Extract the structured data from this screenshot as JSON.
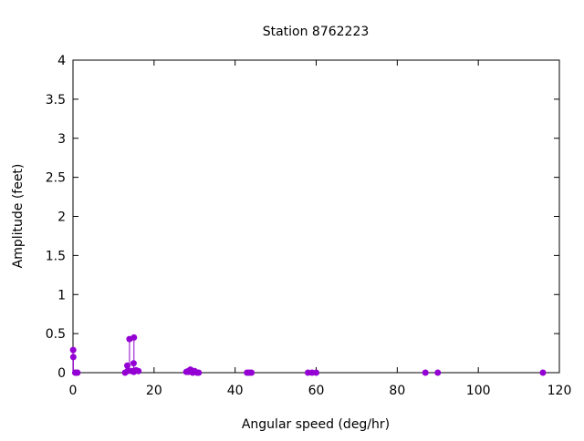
{
  "chart_data": {
    "type": "scatter",
    "style": "impulses with points",
    "title": "Station 8762223",
    "xlabel": "Angular speed (deg/hr)",
    "ylabel": "Amplitude (feet)",
    "xlim": [
      0,
      120
    ],
    "ylim": [
      0,
      4
    ],
    "xticks": [
      "0",
      "20",
      "40",
      "60",
      "80",
      "100",
      "120"
    ],
    "yticks": [
      "0",
      "0.5",
      "1",
      "1.5",
      "2",
      "2.5",
      "3",
      "3.5",
      "4"
    ],
    "xtick_values": [
      0,
      20,
      40,
      60,
      80,
      100,
      120
    ],
    "ytick_values": [
      0,
      0.5,
      1,
      1.5,
      2,
      2.5,
      3,
      3.5,
      4
    ],
    "grid": false,
    "color": "#9400d3",
    "points": [
      [
        0.041,
        0.29
      ],
      [
        0.082,
        0.2
      ],
      [
        0.544,
        0.0
      ],
      [
        1.015,
        0.0
      ],
      [
        1.098,
        0.0
      ],
      [
        12.85,
        0.0
      ],
      [
        13.4,
        0.09
      ],
      [
        13.47,
        0.02
      ],
      [
        13.94,
        0.43
      ],
      [
        14.49,
        0.02
      ],
      [
        14.96,
        0.12
      ],
      [
        15.0,
        0.01
      ],
      [
        15.04,
        0.45
      ],
      [
        15.59,
        0.03
      ],
      [
        16.14,
        0.02
      ],
      [
        27.97,
        0.01
      ],
      [
        28.44,
        0.02
      ],
      [
        28.51,
        0.01
      ],
      [
        28.98,
        0.04
      ],
      [
        29.46,
        0.01
      ],
      [
        29.53,
        0.0
      ],
      [
        30.0,
        0.02
      ],
      [
        30.08,
        0.01
      ],
      [
        30.63,
        0.0
      ],
      [
        31.02,
        0.0
      ],
      [
        42.93,
        0.0
      ],
      [
        43.48,
        0.0
      ],
      [
        44.03,
        0.0
      ],
      [
        57.97,
        0.0
      ],
      [
        58.98,
        0.0
      ],
      [
        60.0,
        0.0
      ],
      [
        86.95,
        0.0
      ],
      [
        90.0,
        0.0
      ],
      [
        115.94,
        0.0
      ]
    ]
  }
}
